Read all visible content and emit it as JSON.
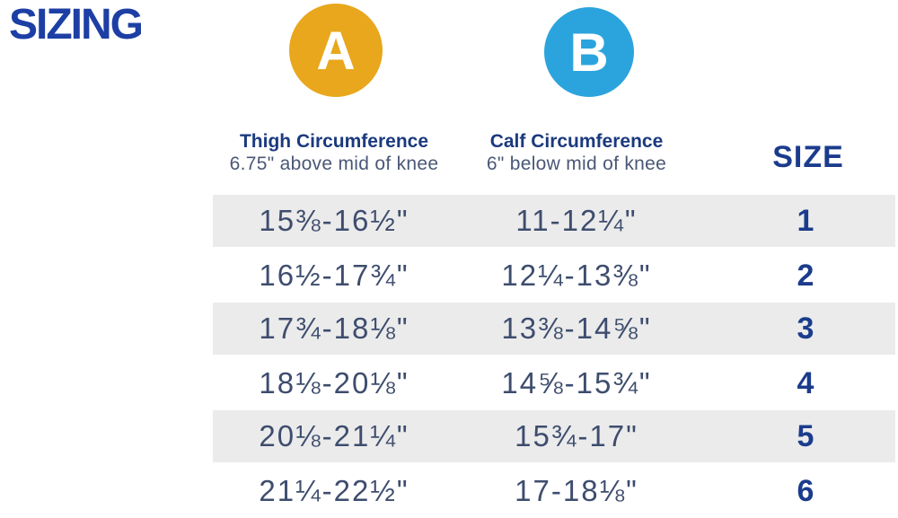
{
  "title": "SIZING",
  "markers": {
    "a": {
      "label": "A",
      "color": "#e8a71c"
    },
    "b": {
      "label": "B",
      "color": "#2ba4dd"
    }
  },
  "table": {
    "headers": {
      "thigh": {
        "title": "Thigh Circumference",
        "subtitle": "6.75\" above mid of knee"
      },
      "calf": {
        "title": "Calf Circumference",
        "subtitle": "6\" below mid of knee"
      },
      "size": {
        "title": "SIZE"
      }
    }
  },
  "chart_data": {
    "type": "table",
    "title": "SIZING",
    "columns": [
      "Thigh Circumference (A) 6.75\" above mid of knee",
      "Calf Circumference (B) 6\" below mid of knee",
      "SIZE"
    ],
    "rows": [
      {
        "thigh": "15⅜-16½\"",
        "calf": "11-12¼\"",
        "size": "1"
      },
      {
        "thigh": "16½-17¾\"",
        "calf": "12¼-13⅜\"",
        "size": "2"
      },
      {
        "thigh": "17¾-18⅛\"",
        "calf": "13⅜-14⅝\"",
        "size": "3"
      },
      {
        "thigh": "18⅛-20⅛\"",
        "calf": "14⅝-15¾\"",
        "size": "4"
      },
      {
        "thigh": "20⅛-21¼\"",
        "calf": "15¾-17\"",
        "size": "5"
      },
      {
        "thigh": "21¼-22½\"",
        "calf": "17-18⅛\"",
        "size": "6"
      }
    ],
    "layout": {
      "stripe_rows": [
        1,
        3,
        5
      ],
      "stripe_color": "#ebebeb"
    }
  },
  "colors": {
    "title_blue": "#1d3fa5",
    "header_navy": "#1b3a7e",
    "subtitle_slate": "#4a5775",
    "measurement_slate": "#3e4d6e",
    "size_navy": "#1b3c8c",
    "marker_a_gold": "#e8a71c",
    "marker_b_blue": "#2ba4dd",
    "row_stripe_gray": "#ebebeb"
  }
}
